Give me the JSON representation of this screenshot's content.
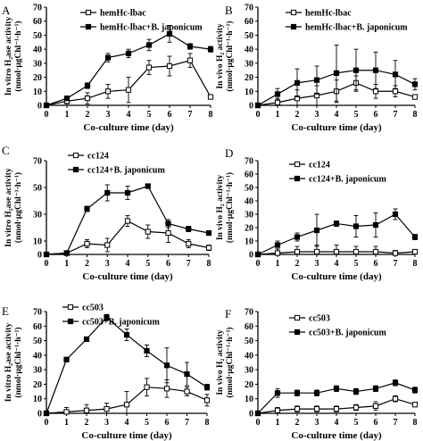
{
  "figure": {
    "panels": [
      "A",
      "B",
      "C",
      "D",
      "E",
      "F"
    ]
  },
  "chart_data": [
    {
      "panel": "A",
      "type": "line",
      "xlabel": "Co-culture time (day)",
      "ylabel_lines": [
        "In vitro H₂ase activity",
        "(nmol·μgChl⁻¹·h⁻¹)"
      ],
      "xlim": [
        0,
        8
      ],
      "ylim": [
        0,
        70
      ],
      "xticks": [
        "0",
        "1",
        "2",
        "3",
        "4",
        "5",
        "6",
        "7",
        "8"
      ],
      "yticks": [
        "0",
        "10",
        "20",
        "30",
        "40",
        "50",
        "60",
        "70"
      ],
      "legend_position": "top-left",
      "series": [
        {
          "name": "hemHc-lbac",
          "marker": "open-square",
          "x": [
            0,
            1,
            2,
            3,
            4,
            5,
            6,
            7,
            8
          ],
          "y": [
            0,
            3,
            5,
            10,
            11,
            27,
            28,
            32,
            6
          ],
          "err": [
            0,
            2,
            4,
            5,
            9,
            5,
            7,
            5,
            1
          ]
        },
        {
          "name": "hemHc-lbac+B. japonicum",
          "marker": "filled-square",
          "x": [
            0,
            1,
            2,
            3,
            4,
            5,
            6,
            7,
            8
          ],
          "y": [
            0,
            5,
            14,
            34,
            37,
            43,
            51,
            42,
            40
          ],
          "err": [
            0,
            1,
            2,
            3,
            3,
            4,
            6,
            2,
            2
          ]
        }
      ]
    },
    {
      "panel": "B",
      "type": "line",
      "xlabel": "Co-culture time (day)",
      "ylabel_lines": [
        "In vivo H₂ activity",
        "(nmol·μgChl⁻¹·h⁻¹)"
      ],
      "xlim": [
        0,
        8
      ],
      "ylim": [
        0,
        70
      ],
      "xticks": [
        "0",
        "1",
        "2",
        "3",
        "4",
        "5",
        "6",
        "7",
        "8"
      ],
      "yticks": [
        "0",
        "10",
        "20",
        "30",
        "40",
        "50",
        "60",
        "70"
      ],
      "legend_position": "top-left",
      "series": [
        {
          "name": "hemHc-lbac",
          "marker": "open-square",
          "x": [
            0,
            1,
            2,
            3,
            4,
            5,
            6,
            7,
            8
          ],
          "y": [
            0,
            2,
            5,
            7,
            10,
            16,
            10,
            10,
            6
          ],
          "err": [
            0,
            3,
            6,
            7,
            8,
            5,
            5,
            4,
            1
          ]
        },
        {
          "name": "hemHc-lbac+B. japonicum",
          "marker": "filled-square",
          "x": [
            0,
            1,
            2,
            3,
            4,
            5,
            6,
            7,
            8
          ],
          "y": [
            0,
            8,
            16,
            18,
            23,
            25,
            25,
            22,
            15
          ],
          "err": [
            0,
            4,
            10,
            10,
            20,
            15,
            13,
            10,
            4
          ]
        }
      ]
    },
    {
      "panel": "C",
      "type": "line",
      "xlabel": "Co-culture time (day)",
      "ylabel_lines": [
        "In vitro H₂ase activity",
        "(nmol·μgChl⁻¹·h⁻¹)"
      ],
      "xlim": [
        0,
        8
      ],
      "ylim": [
        0,
        70
      ],
      "xticks": [
        "0",
        "1",
        "2",
        "3",
        "4",
        "5",
        "6",
        "7",
        "8"
      ],
      "yticks": [
        "0",
        "10",
        "30",
        "50",
        "70"
      ],
      "legend_position": "top-left",
      "series": [
        {
          "name": "cc124",
          "marker": "open-square",
          "x": [
            0,
            1,
            2,
            3,
            4,
            5,
            6,
            7,
            8
          ],
          "y": [
            0,
            1,
            8,
            7,
            25,
            17,
            16,
            8,
            5
          ],
          "err": [
            0,
            0,
            3,
            5,
            4,
            5,
            7,
            3,
            2
          ]
        },
        {
          "name": "cc124+B. japonicum",
          "marker": "filled-square",
          "x": [
            0,
            1,
            2,
            3,
            4,
            5,
            6,
            7,
            8
          ],
          "y": [
            0,
            1,
            34,
            46,
            46,
            51,
            23,
            19,
            16
          ],
          "err": [
            0,
            0,
            2,
            6,
            5,
            1,
            3,
            2,
            1
          ]
        }
      ]
    },
    {
      "panel": "D",
      "type": "line",
      "xlabel": "Co-culture time (day)",
      "ylabel_lines": [
        "In vivo H₂ activity",
        "(nmol·μgChl⁻¹·h⁻¹)"
      ],
      "xlim": [
        0,
        8
      ],
      "ylim": [
        0,
        70
      ],
      "xticks": [
        "0",
        "1",
        "2",
        "3",
        "4",
        "5",
        "6",
        "7",
        "8"
      ],
      "yticks": [
        "0",
        "10",
        "20",
        "30",
        "40",
        "50",
        "60",
        "70"
      ],
      "legend_position": "top-left",
      "series": [
        {
          "name": "cc124",
          "marker": "open-square",
          "x": [
            0,
            1,
            2,
            3,
            4,
            5,
            6,
            7,
            8
          ],
          "y": [
            0,
            1,
            2,
            2,
            2,
            2,
            2,
            1,
            2
          ],
          "err": [
            0,
            3,
            4,
            5,
            5,
            4,
            4,
            2,
            1
          ]
        },
        {
          "name": "cc124+B. japonicum",
          "marker": "filled-square",
          "x": [
            0,
            1,
            2,
            3,
            4,
            5,
            6,
            7,
            8
          ],
          "y": [
            0,
            7,
            13,
            18,
            23,
            21,
            22,
            30,
            13
          ],
          "err": [
            0,
            3,
            3,
            12,
            2,
            8,
            9,
            4,
            2
          ]
        }
      ]
    },
    {
      "panel": "E",
      "type": "line",
      "xlabel": "Co-culture time (day)",
      "ylabel_lines": [
        "In vitro H₂ase activity",
        "(nmol·μgChl⁻¹·h⁻¹)"
      ],
      "xlim": [
        0,
        8
      ],
      "ylim": [
        0,
        70
      ],
      "xticks": [
        "0",
        "1",
        "2",
        "3",
        "4",
        "5",
        "6",
        "7",
        "8"
      ],
      "yticks": [
        "0",
        "10",
        "20",
        "30",
        "40",
        "50",
        "60",
        "70"
      ],
      "legend_position": "top-left",
      "series": [
        {
          "name": "cc503",
          "marker": "open-square",
          "x": [
            0,
            1,
            2,
            3,
            4,
            5,
            6,
            7,
            8
          ],
          "y": [
            0,
            1,
            2,
            3,
            6,
            18,
            17,
            15,
            9
          ],
          "err": [
            0,
            3,
            4,
            4,
            9,
            6,
            6,
            3,
            4
          ]
        },
        {
          "name": "cc503+B. japonicum",
          "marker": "filled-square",
          "x": [
            0,
            1,
            2,
            3,
            4,
            5,
            6,
            7,
            8
          ],
          "y": [
            0,
            37,
            51,
            66,
            54,
            43,
            33,
            27,
            18
          ],
          "err": [
            0,
            1,
            1,
            2,
            4,
            4,
            12,
            8,
            2
          ]
        }
      ]
    },
    {
      "panel": "F",
      "type": "line",
      "xlabel": "Co-culture time (day)",
      "ylabel_lines": [
        "In vivo H₂ activity",
        "(nmol·μgChl⁻¹·h⁻¹)"
      ],
      "xlim": [
        0,
        8
      ],
      "ylim": [
        0,
        70
      ],
      "xticks": [
        "0",
        "1",
        "2",
        "3",
        "4",
        "5",
        "6",
        "7",
        "8"
      ],
      "yticks": [
        "0",
        "10",
        "20",
        "30",
        "40",
        "50",
        "60",
        "70"
      ],
      "legend_position": "top-left",
      "series": [
        {
          "name": "cc503",
          "marker": "open-square",
          "x": [
            0,
            1,
            2,
            3,
            4,
            5,
            6,
            7,
            8
          ],
          "y": [
            0,
            2,
            3,
            3,
            3,
            4,
            5,
            10,
            6
          ],
          "err": [
            0,
            2,
            2,
            2,
            2,
            2,
            3,
            2,
            1
          ]
        },
        {
          "name": "cc503+B. japonicum",
          "marker": "filled-square",
          "x": [
            0,
            1,
            2,
            3,
            4,
            5,
            6,
            7,
            8
          ],
          "y": [
            0,
            14,
            14,
            14,
            17,
            15,
            17,
            21,
            16
          ],
          "err": [
            0,
            3,
            2,
            2,
            2,
            2,
            2,
            2,
            2
          ]
        }
      ]
    }
  ]
}
